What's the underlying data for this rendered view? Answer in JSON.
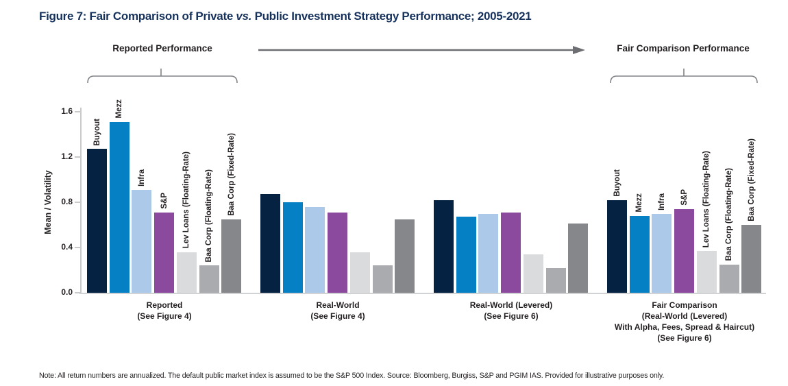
{
  "figure": {
    "title_pre": "Figure 7:  Fair Comparison of Private ",
    "title_vs": "vs.",
    "title_post": " Public Investment Strategy Performance; 2005-2021",
    "title_color": "#16325c"
  },
  "annotations": {
    "left_label": "Reported Performance",
    "right_label": "Fair Comparison Performance",
    "arrow_color": "#6d6e71",
    "bracket_color": "#808285"
  },
  "chart_data": {
    "type": "bar",
    "ylabel": "Mean / Volatility",
    "ylim": [
      0,
      1.6
    ],
    "yticks": [
      0.0,
      0.4,
      0.8,
      1.2,
      1.6
    ],
    "grid": false,
    "series_labels": [
      "Buyout",
      "Mezz",
      "Infra",
      "S&P",
      "Lev Loans (Floating-Rate)",
      "Baa Corp (Floating-Rate)",
      "Baa Corp (Fixed-Rate)"
    ],
    "series_colors": [
      "#052243",
      "#0680c4",
      "#adc9e9",
      "#8b4a9e",
      "#d9dbdd",
      "#a9abae",
      "#85878a"
    ],
    "groups": [
      {
        "label_lines": [
          "Reported",
          "(See Figure 4)"
        ],
        "show_bar_labels": true,
        "values": [
          1.27,
          1.51,
          0.91,
          0.71,
          0.36,
          0.24,
          0.65
        ]
      },
      {
        "label_lines": [
          "Real-World",
          "(See Figure 4)"
        ],
        "show_bar_labels": false,
        "values": [
          0.87,
          0.8,
          0.76,
          0.71,
          0.36,
          0.24,
          0.65
        ]
      },
      {
        "label_lines": [
          "Real-World (Levered)",
          "(See Figure 6)"
        ],
        "show_bar_labels": false,
        "values": [
          0.82,
          0.67,
          0.7,
          0.71,
          0.34,
          0.22,
          0.61
        ]
      },
      {
        "label_lines": [
          "Fair Comparison",
          "(Real-World (Levered)",
          "With Alpha, Fees, Spread & Haircut)",
          "(See Figure 6)"
        ],
        "show_bar_labels": true,
        "values": [
          0.82,
          0.68,
          0.7,
          0.74,
          0.37,
          0.25,
          0.6
        ]
      }
    ]
  },
  "note": "Note: All return numbers are annualized. The default public market index is assumed to be the S&P 500 Index. Source: Bloomberg, Burgiss, S&P and PGIM IAS. Provided for illustrative purposes only."
}
